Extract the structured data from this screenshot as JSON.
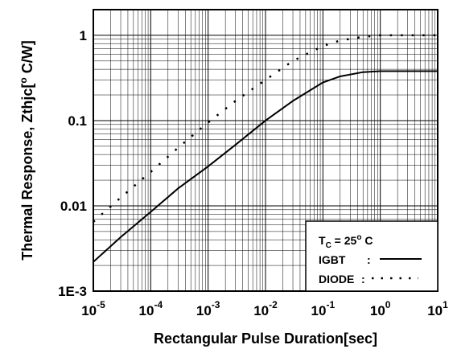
{
  "chart_data": {
    "type": "line",
    "x_scale": "log",
    "y_scale": "log",
    "xlim": [
      1e-05,
      10
    ],
    "ylim": [
      0.001,
      2
    ],
    "grid": true,
    "xlabel": "Rectangular Pulse Duration[sec]",
    "ylabel": {
      "main": "Thermal Response, Zthjc[",
      "sup": "o",
      "tail": " C/W]"
    },
    "x_ticks": [
      {
        "base": "10",
        "exp": "-5",
        "value": 1e-05
      },
      {
        "base": "10",
        "exp": "-4",
        "value": 0.0001
      },
      {
        "base": "10",
        "exp": "-3",
        "value": 0.001
      },
      {
        "base": "10",
        "exp": "-2",
        "value": 0.01
      },
      {
        "base": "10",
        "exp": "-1",
        "value": 0.1
      },
      {
        "base": "10",
        "exp": "0",
        "value": 1
      },
      {
        "base": "10",
        "exp": "1",
        "value": 10
      }
    ],
    "y_ticks": [
      {
        "label": "1E-3",
        "value": 0.001
      },
      {
        "label": "0.01",
        "value": 0.01
      },
      {
        "label": "0.1",
        "value": 0.1
      },
      {
        "label": "1",
        "value": 1
      }
    ],
    "series": [
      {
        "name": "IGBT",
        "style": "solid",
        "x": [
          1e-05,
          3e-05,
          0.0001,
          0.0003,
          0.001,
          0.003,
          0.01,
          0.03,
          0.1,
          0.2,
          0.5,
          1,
          2,
          5,
          10
        ],
        "y": [
          0.0022,
          0.0043,
          0.0085,
          0.016,
          0.029,
          0.052,
          0.1,
          0.17,
          0.28,
          0.33,
          0.37,
          0.38,
          0.38,
          0.38,
          0.38
        ]
      },
      {
        "name": "DIODE",
        "style": "dotted",
        "x": [
          1e-05,
          3e-05,
          0.0001,
          0.0003,
          0.001,
          0.003,
          0.01,
          0.03,
          0.1,
          0.2,
          0.5,
          1,
          2,
          5,
          10
        ],
        "y": [
          0.0065,
          0.0125,
          0.025,
          0.048,
          0.095,
          0.17,
          0.3,
          0.5,
          0.75,
          0.87,
          0.96,
          1.0,
          1.0,
          1.0,
          1.0
        ]
      }
    ],
    "legend": {
      "position": "bottom-right",
      "condition": {
        "T": "T",
        "sub": "C",
        "eq": " = 25",
        "sup": "o",
        "unit": " C"
      },
      "items": [
        {
          "label": "IGBT",
          "sep": ":",
          "style": "solid"
        },
        {
          "label": "DIODE",
          "sep": ":",
          "style": "dotted"
        }
      ]
    }
  }
}
